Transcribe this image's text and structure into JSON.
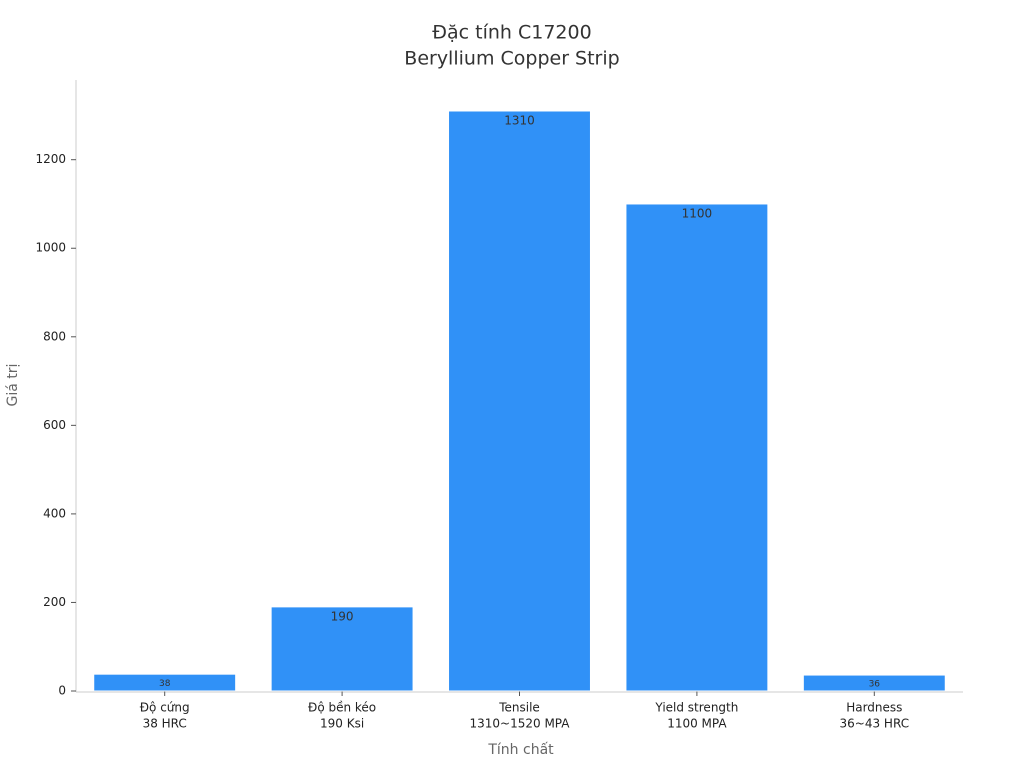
{
  "chart_data": {
    "type": "bar",
    "title": [
      "Đặc tính C17200",
      "Beryllium Copper Strip"
    ],
    "x_label": "Tính chất",
    "y_label": "Giá trị",
    "categories": [
      [
        "Độ cứng",
        "38 HRC"
      ],
      [
        "Độ bền kéo",
        "190 Ksi"
      ],
      [
        "Tensile",
        "1310~1520 MPA"
      ],
      [
        "Yield strength",
        "1100 MPA"
      ],
      [
        "Hardness",
        "36~43 HRC"
      ]
    ],
    "values": [
      38,
      190,
      1310,
      1100,
      36
    ],
    "color": "#3091f7",
    "ylim": [
      0,
      1380
    ],
    "yticks": [
      0,
      200,
      400,
      600,
      800,
      1000,
      1200
    ],
    "grid": false
  }
}
